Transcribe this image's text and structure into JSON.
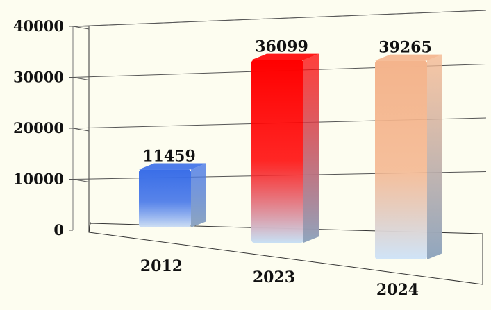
{
  "chart_data": {
    "type": "bar",
    "title": "",
    "xlabel": "",
    "ylabel": "",
    "categories": [
      "2012",
      "2023",
      "2024"
    ],
    "values": [
      11459,
      36099,
      39265
    ],
    "data_labels": [
      "11459",
      "36099",
      "39265"
    ],
    "y_ticks": [
      "0",
      "10000",
      "20000",
      "30000",
      "40000"
    ],
    "ylim": [
      0,
      40000
    ],
    "grid": true,
    "style": "3d-perspective",
    "bar_colors": [
      {
        "top": "#3a6ee8",
        "bottom": "#cfe0f4"
      },
      {
        "top": "#ff0000",
        "bottom": "#c8e0f4"
      },
      {
        "top": "#f4b48c",
        "bottom": "#cfe4f8"
      }
    ],
    "background": "#fdfdf0"
  }
}
